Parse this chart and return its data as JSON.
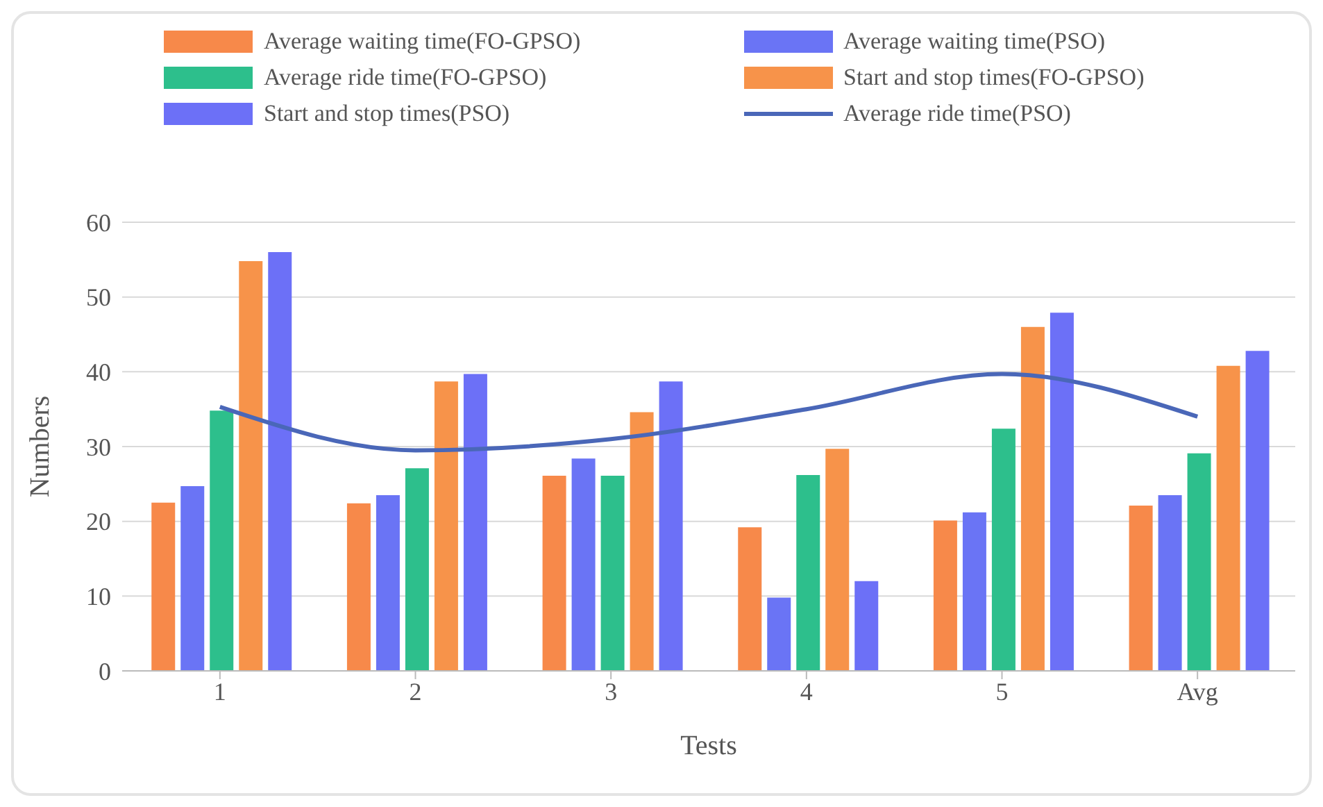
{
  "chart_data": {
    "type": "bar",
    "xlabel": "Tests",
    "ylabel": "Numbers",
    "categories": [
      "1",
      "2",
      "3",
      "4",
      "5",
      "Avg"
    ],
    "series": [
      {
        "name": "Average waiting time(FO-GPSO)",
        "color": "#f7894a",
        "values": [
          22.5,
          22.4,
          26.1,
          19.2,
          20.1,
          22.1
        ]
      },
      {
        "name": "Average waiting time(PSO)",
        "color": "#6a74f5",
        "values": [
          24.7,
          23.5,
          28.4,
          9.8,
          21.2,
          23.5
        ]
      },
      {
        "name": "Average ride time(FO-GPSO)",
        "color": "#2dbf8c",
        "values": [
          34.8,
          27.1,
          26.1,
          26.2,
          32.4,
          29.1
        ]
      },
      {
        "name": "Start and stop times(FO-GPSO)",
        "color": "#f7934a",
        "values": [
          54.8,
          38.7,
          34.6,
          29.7,
          46,
          40.8
        ]
      },
      {
        "name": "Start and stop times(PSO)",
        "color": "#6c70f7",
        "values": [
          56,
          39.7,
          38.7,
          12,
          47.9,
          42.8
        ]
      },
      {
        "name": "Average ride time(PSO)",
        "type": "line",
        "color": "#4a67b8",
        "values": [
          35.3,
          29.5,
          31,
          35,
          39.7,
          34
        ]
      }
    ],
    "ylim": [
      0,
      60
    ],
    "yticks": [
      0,
      10,
      20,
      30,
      40,
      50,
      60
    ],
    "grid": "y",
    "legend": "top",
    "marker": "none",
    "line_style": "solid"
  }
}
